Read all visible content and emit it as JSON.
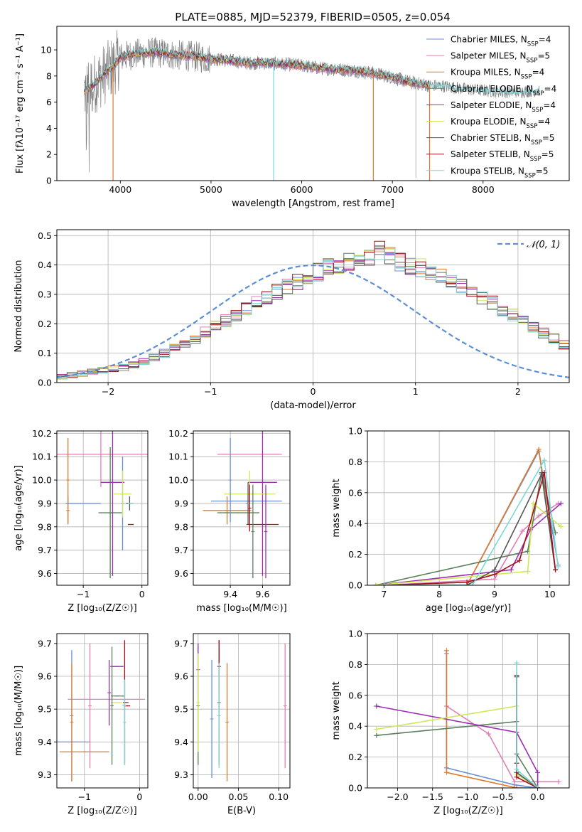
{
  "figure": {
    "title": "PLATE=0885, MJD=52379, FIBERID=0505, z=0.054"
  },
  "colors": {
    "Chabrier MILES": "#6a8fd6",
    "Salpeter MILES": "#e07fb4",
    "Kroupa MILES": "#e07a2a",
    "Chabrier ELODIE": "#5b7f5b",
    "Salpeter ELODIE": "#9b2fb0",
    "Kroupa ELODIE": "#cfe85a",
    "Chabrier STELIB": "#555555",
    "Salpeter STELIB": "#a3101c",
    "Kroupa STELIB": "#7dd8d8",
    "data": "#808080",
    "gaussian": "#5b8fd6"
  },
  "chart_data": [
    {
      "type": "line",
      "id": "spectrum",
      "xlabel": "wavelength [Angstrom, rest frame]",
      "ylabel": "Flux [fλ10⁻¹⁷ erg cm⁻² s⁻¹ A⁻¹]",
      "xlim": [
        3300,
        8950
      ],
      "ylim": [
        0,
        11.8
      ],
      "xticks": [
        4000,
        5000,
        6000,
        7000,
        8000
      ],
      "yticks": [
        0,
        2,
        4,
        6,
        8,
        10
      ],
      "grid": false,
      "legend_position": "top-right",
      "legend": [
        {
          "model": "Chabrier MILES",
          "nssp": "4"
        },
        {
          "model": "Salpeter MILES",
          "nssp": "5"
        },
        {
          "model": "Kroupa MILES",
          "nssp": "4"
        },
        {
          "model": "Chabrier ELODIE",
          "nssp": "4"
        },
        {
          "model": "Salpeter ELODIE",
          "nssp": "4"
        },
        {
          "model": "Kroupa ELODIE",
          "nssp": "4"
        },
        {
          "model": "Chabrier STELIB",
          "nssp": "5"
        },
        {
          "model": "Salpeter STELIB",
          "nssp": "5"
        },
        {
          "model": "Kroupa STELIB",
          "nssp": "5"
        }
      ],
      "continuum": {
        "x": [
          3600,
          3700,
          3800,
          3900,
          4000,
          4100,
          4200,
          4400,
          4600,
          4800,
          5000,
          5200,
          5400,
          5600,
          5800,
          6000,
          6200,
          6400,
          6600,
          6800,
          7000,
          7200,
          7400,
          7600,
          7800,
          8000,
          8200,
          8400,
          8600
        ],
        "y": [
          6.8,
          7.3,
          8.0,
          8.6,
          9.4,
          9.6,
          9.7,
          9.8,
          9.6,
          9.5,
          9.3,
          9.2,
          9.0,
          9.0,
          8.9,
          8.8,
          8.6,
          8.5,
          8.4,
          8.2,
          7.9,
          7.5,
          7.3,
          7.2,
          7.0,
          6.9,
          6.8,
          6.8,
          6.9
        ]
      },
      "model_xmax": 7420,
      "data_xmax": 8620,
      "drops": [
        {
          "x": 3920,
          "to": 0.0,
          "model": "Kroupa MILES"
        },
        {
          "x": 5690,
          "to": 0.0,
          "model": "Kroupa STELIB"
        },
        {
          "x": 6790,
          "to": 0.0,
          "model": "Kroupa MILES"
        },
        {
          "x": 7260,
          "to": 0.2,
          "model": "data"
        },
        {
          "x": 7410,
          "to": 0.0,
          "model": "Kroupa MILES"
        }
      ]
    },
    {
      "type": "bar",
      "id": "residuals",
      "xlabel": "(data-model)/error",
      "ylabel": "Normed distribution",
      "xlim": [
        -2.5,
        2.5
      ],
      "ylim": [
        0,
        0.52
      ],
      "xticks": [
        -2,
        -1,
        0,
        1,
        2
      ],
      "yticks": [
        0.0,
        0.1,
        0.2,
        0.3,
        0.4,
        0.5
      ],
      "grid": true,
      "legend_position": "top-right",
      "legend": [
        "𝒩(0, 1)"
      ],
      "bin_width": 0.1,
      "bin_start": -2.5,
      "base_values": [
        0.02,
        0.025,
        0.03,
        0.035,
        0.04,
        0.045,
        0.05,
        0.06,
        0.07,
        0.085,
        0.1,
        0.115,
        0.13,
        0.15,
        0.17,
        0.19,
        0.21,
        0.23,
        0.25,
        0.27,
        0.29,
        0.31,
        0.33,
        0.345,
        0.36,
        0.375,
        0.39,
        0.4,
        0.41,
        0.42,
        0.43,
        0.445,
        0.43,
        0.41,
        0.4,
        0.39,
        0.38,
        0.365,
        0.35,
        0.33,
        0.31,
        0.29,
        0.27,
        0.25,
        0.23,
        0.21,
        0.19,
        0.17,
        0.15,
        0.13,
        0.115,
        0.1,
        0.085,
        0.07,
        0.06,
        0.05,
        0.04,
        0.035,
        0.03,
        0.025,
        0.02
      ],
      "gaussian": {
        "mean": 0,
        "sigma": 1
      }
    },
    {
      "type": "scatter",
      "id": "age-vs-Z",
      "xlabel": "Z [log₁₀(Z/Z☉)]",
      "ylabel": "age  [log₁₀(age/yr)]",
      "xlim": [
        -1.45,
        0.1
      ],
      "ylim": [
        9.55,
        10.21
      ],
      "xticks": [
        -1,
        0
      ],
      "yticks": [
        9.6,
        9.7,
        9.8,
        9.9,
        10.0,
        10.1,
        10.2
      ],
      "grid": true,
      "points": [
        {
          "model": "Chabrier MILES",
          "x": -0.33,
          "xerr": 0.0,
          "y": 9.9,
          "yerr": 0.2
        },
        {
          "model": "Salpeter MILES",
          "x": -0.7,
          "xerr": 0.85,
          "y": 10.11,
          "yerr": 0.14
        },
        {
          "model": "Kroupa MILES",
          "x": -1.26,
          "xerr": 0.0,
          "y": 9.87,
          "yerr": 0.06
        },
        {
          "model": "Chabrier ELODIE",
          "x": -0.54,
          "xerr": 0.2,
          "y": 9.86,
          "yerr": 0.28
        },
        {
          "model": "Salpeter ELODIE",
          "x": -0.5,
          "xerr": 0.2,
          "y": 9.99,
          "yerr": 0.4
        },
        {
          "model": "Kroupa ELODIE",
          "x": -0.33,
          "xerr": 0.15,
          "y": 9.94,
          "yerr": 0.1
        },
        {
          "model": "Chabrier STELIB",
          "x": -0.21,
          "xerr": 0.06,
          "y": 9.9,
          "yerr": 0.03
        },
        {
          "model": "Salpeter STELIB",
          "x": -0.19,
          "xerr": 0.05,
          "y": 9.81,
          "yerr": 0.0
        },
        {
          "model": "Kroupa STELIB",
          "x": -0.19,
          "xerr": 0.05,
          "y": 9.9,
          "yerr": 0.0
        },
        {
          "model": "Kroupa MILES",
          "x": -1.26,
          "xerr": 0.0,
          "y": 10.0,
          "yerr": 0.18
        },
        {
          "model": "Chabrier MILES",
          "x": -1.0,
          "xerr": 0.3,
          "y": 9.9,
          "yerr": 0.0
        }
      ]
    },
    {
      "type": "scatter",
      "id": "age-vs-mass",
      "xlabel": "mass [log₁₀(M/M☉)]",
      "ylabel": "",
      "xlim": [
        9.17,
        9.77
      ],
      "ylim": [
        9.55,
        10.21
      ],
      "xticks": [
        9.4,
        9.6
      ],
      "yticks": [
        9.6,
        9.7,
        9.8,
        9.9,
        10.0,
        10.1,
        10.2
      ],
      "grid": true,
      "points": [
        {
          "model": "Chabrier MILES",
          "x": 9.5,
          "xerr": 0.22,
          "y": 9.91,
          "yerr": 0.0
        },
        {
          "model": "Salpeter MILES",
          "x": 9.52,
          "xerr": 0.2,
          "y": 10.11,
          "yerr": 0.0
        },
        {
          "model": "Kroupa MILES",
          "x": 9.38,
          "xerr": 0.15,
          "y": 9.87,
          "yerr": 0.06
        },
        {
          "model": "Chabrier ELODIE",
          "x": 9.45,
          "xerr": 0.13,
          "y": 9.86,
          "yerr": 0.0
        },
        {
          "model": "Salpeter ELODIE",
          "x": 9.6,
          "xerr": 0.09,
          "y": 9.99,
          "yerr": 0.4
        },
        {
          "model": "Kroupa ELODIE",
          "x": 9.52,
          "xerr": 0.16,
          "y": 9.94,
          "yerr": 0.1
        },
        {
          "model": "Chabrier STELIB",
          "x": 9.51,
          "xerr": 0.0,
          "y": 9.9,
          "yerr": 0.09
        },
        {
          "model": "Salpeter STELIB",
          "x": 9.6,
          "xerr": 0.1,
          "y": 9.81,
          "yerr": 0.0
        },
        {
          "model": "Kroupa STELIB",
          "x": 9.52,
          "xerr": 0.0,
          "y": 9.9,
          "yerr": 0.0
        },
        {
          "model": "Chabrier MILES",
          "x": 9.4,
          "xerr": 0.0,
          "y": 10.0,
          "yerr": 0.18
        },
        {
          "model": "Salpeter STELIB",
          "x": 9.52,
          "xerr": 0.0,
          "y": 9.88,
          "yerr": 0.1
        },
        {
          "model": "Chabrier ELODIE",
          "x": 9.54,
          "xerr": 0.0,
          "y": 9.78,
          "yerr": 0.2
        },
        {
          "model": "Salpeter ELODIE",
          "x": 9.62,
          "xerr": 0.0,
          "y": 9.78,
          "yerr": 0.2
        }
      ]
    },
    {
      "type": "line",
      "id": "massweight-vs-age",
      "xlabel": "age  [log₁₀(age/yr)]",
      "ylabel": "mass weight",
      "xlim": [
        6.7,
        10.35
      ],
      "ylim": [
        0,
        1.0
      ],
      "xticks": [
        7,
        8,
        9,
        10
      ],
      "yticks": [
        0.0,
        0.2,
        0.4,
        0.6,
        0.8,
        1.0
      ],
      "grid": true,
      "series": [
        {
          "name": "Chabrier MILES",
          "x": [
            7.0,
            8.5,
            9.8,
            10.15
          ],
          "y": [
            0.0,
            0.0,
            0.87,
            0.13
          ]
        },
        {
          "name": "Salpeter MILES",
          "x": [
            7.0,
            9.0,
            9.5,
            9.8,
            10.15
          ],
          "y": [
            0.0,
            0.04,
            0.35,
            0.45,
            0.53
          ]
        },
        {
          "name": "Kroupa MILES",
          "x": [
            7.0,
            8.5,
            9.8,
            10.1
          ],
          "y": [
            0.0,
            0.0,
            0.88,
            0.1
          ]
        },
        {
          "name": "Chabrier ELODIE",
          "x": [
            6.85,
            9.6,
            9.85,
            10.1
          ],
          "y": [
            0.0,
            0.22,
            0.73,
            0.34
          ]
        },
        {
          "name": "Salpeter ELODIE",
          "x": [
            6.85,
            9.3,
            9.65,
            10.2
          ],
          "y": [
            0.0,
            0.1,
            0.36,
            0.53
          ]
        },
        {
          "name": "Kroupa ELODIE",
          "x": [
            6.85,
            9.6,
            9.7,
            10.2
          ],
          "y": [
            0.0,
            0.09,
            0.53,
            0.38
          ]
        },
        {
          "name": "Chabrier STELIB",
          "x": [
            7.0,
            8.5,
            9.0,
            9.85,
            10.1
          ],
          "y": [
            0.0,
            0.0,
            0.1,
            0.72,
            0.1
          ]
        },
        {
          "name": "Salpeter STELIB",
          "x": [
            7.0,
            8.5,
            9.0,
            9.45,
            9.9,
            10.1
          ],
          "y": [
            0.0,
            0.02,
            0.07,
            0.16,
            0.73,
            0.1
          ]
        },
        {
          "name": "Kroupa STELIB",
          "x": [
            7.0,
            8.6,
            9.9,
            10.15
          ],
          "y": [
            0.0,
            0.0,
            0.81,
            0.12
          ]
        }
      ]
    },
    {
      "type": "scatter",
      "id": "mass-vs-Z",
      "xlabel": "Z [log₁₀(Z/Z☉)]",
      "ylabel": "mass [log₁₀(M/M☉)]",
      "xlim": [
        -1.5,
        0.15
      ],
      "ylim": [
        9.26,
        9.73
      ],
      "xticks": [
        -1,
        0
      ],
      "yticks": [
        9.3,
        9.4,
        9.5,
        9.6,
        9.7
      ],
      "grid": true,
      "points": [
        {
          "model": "Chabrier MILES",
          "x": -1.2,
          "xerr": 0.3,
          "y": 9.4,
          "yerr": 0.0
        },
        {
          "model": "Salpeter MILES",
          "x": -0.6,
          "xerr": 0.7,
          "y": 9.53,
          "yerr": 0.0
        },
        {
          "model": "Kroupa MILES",
          "x": -1.0,
          "xerr": 0.45,
          "y": 9.37,
          "yerr": 0.0
        },
        {
          "model": "Chabrier ELODIE",
          "x": -0.4,
          "xerr": 0.12,
          "y": 9.54,
          "yerr": 0.0
        },
        {
          "model": "Salpeter ELODIE",
          "x": -0.41,
          "xerr": 0.12,
          "y": 9.63,
          "yerr": 0.0
        },
        {
          "model": "Kroupa ELODIE",
          "x": -0.42,
          "xerr": 0.1,
          "y": 9.52,
          "yerr": 0.0
        },
        {
          "model": "Chabrier STELIB",
          "x": -0.25,
          "xerr": 0.05,
          "y": 9.52,
          "yerr": 0.0
        },
        {
          "model": "Salpeter STELIB",
          "x": -0.22,
          "xerr": 0.05,
          "y": 9.51,
          "yerr": 0.0
        },
        {
          "model": "Kroupa STELIB",
          "x": -0.28,
          "xerr": 0.0,
          "y": 9.51,
          "yerr": 0.0
        },
        {
          "model": "Chabrier MILES",
          "x": -1.23,
          "xerr": 0.0,
          "y": 9.48,
          "yerr": 0.2
        },
        {
          "model": "Kroupa MILES",
          "x": -1.23,
          "xerr": 0.0,
          "y": 9.46,
          "yerr": 0.18
        },
        {
          "model": "Salpeter MILES",
          "x": -0.9,
          "xerr": 0.0,
          "y": 9.51,
          "yerr": 0.19
        },
        {
          "model": "Chabrier ELODIE",
          "x": -0.5,
          "xerr": 0.0,
          "y": 9.51,
          "yerr": 0.18
        },
        {
          "model": "Salpeter ELODIE",
          "x": -0.55,
          "xerr": 0.0,
          "y": 9.55,
          "yerr": 0.1
        },
        {
          "model": "Salpeter STELIB",
          "x": -0.27,
          "xerr": 0.0,
          "y": 9.52,
          "yerr": 0.19
        },
        {
          "model": "Kroupa STELIB",
          "x": -0.27,
          "xerr": 0.0,
          "y": 9.46,
          "yerr": 0.13
        }
      ]
    },
    {
      "type": "scatter",
      "id": "mass-vs-EBV",
      "xlabel": "E(B-V)",
      "ylabel": "",
      "xlim": [
        -0.006,
        0.114
      ],
      "ylim": [
        9.26,
        9.73
      ],
      "xticks": [
        0.0,
        0.05,
        0.1
      ],
      "yticks": [
        9.3,
        9.4,
        9.5,
        9.6,
        9.7
      ],
      "grid": true,
      "points": [
        {
          "model": "Chabrier MILES",
          "x": 0.017,
          "xerr": 0.0,
          "y": 9.47,
          "yerr": 0.18
        },
        {
          "model": "Salpeter MILES",
          "x": 0.108,
          "xerr": 0.0,
          "y": 9.51,
          "yerr": 0.19
        },
        {
          "model": "Kroupa MILES",
          "x": 0.036,
          "xerr": 0.0,
          "y": 9.46,
          "yerr": 0.18
        },
        {
          "model": "Chabrier ELODIE",
          "x": 0.0,
          "xerr": 0.0,
          "y": 9.51,
          "yerr": 0.18
        },
        {
          "model": "Salpeter ELODIE",
          "x": 0.0,
          "xerr": 0.0,
          "y": 9.62,
          "yerr": 0.08
        },
        {
          "model": "Kroupa ELODIE",
          "x": 0.0,
          "xerr": 0.0,
          "y": 9.52,
          "yerr": 0.15
        },
        {
          "model": "Chabrier STELIB",
          "x": 0.026,
          "xerr": 0.0,
          "y": 9.52,
          "yerr": 0.19
        },
        {
          "model": "Salpeter STELIB",
          "x": 0.026,
          "xerr": 0.0,
          "y": 9.63,
          "yerr": 0.08
        },
        {
          "model": "Kroupa STELIB",
          "x": 0.026,
          "xerr": 0.0,
          "y": 9.48,
          "yerr": 0.16
        }
      ]
    },
    {
      "type": "line",
      "id": "massweight-vs-Z",
      "xlabel": "Z [log₁₀(Z/Z☉)]",
      "ylabel": "mass weight",
      "xlim": [
        -2.43,
        0.45
      ],
      "ylim": [
        0,
        1.0
      ],
      "xticks": [
        -2.0,
        -1.5,
        -1.0,
        -0.5,
        0.0
      ],
      "yticks": [
        0.0,
        0.2,
        0.4,
        0.6,
        0.8,
        1.0
      ],
      "grid": true,
      "series": [
        {
          "name": "Chabrier MILES",
          "x": [
            -1.3,
            -1.3,
            -0.33,
            0.0
          ],
          "y": [
            0.87,
            0.13,
            0.02,
            0.0
          ]
        },
        {
          "name": "Salpeter MILES",
          "x": [
            -1.3,
            -0.7,
            -0.33,
            0.3
          ],
          "y": [
            0.53,
            0.35,
            0.04,
            0.04
          ]
        },
        {
          "name": "Kroupa MILES",
          "x": [
            -1.3,
            -1.3,
            -0.3,
            0.0
          ],
          "y": [
            0.89,
            0.1,
            0.0,
            0.0
          ]
        },
        {
          "name": "Chabrier ELODIE",
          "x": [
            -2.3,
            -0.3,
            -0.3,
            0.0
          ],
          "y": [
            0.34,
            0.43,
            0.22,
            0.0
          ]
        },
        {
          "name": "Salpeter ELODIE",
          "x": [
            -2.3,
            -0.3,
            0.0,
            0.0
          ],
          "y": [
            0.53,
            0.36,
            0.1,
            0.0
          ]
        },
        {
          "name": "Kroupa ELODIE",
          "x": [
            -2.3,
            -0.3,
            -0.3,
            0.0
          ],
          "y": [
            0.38,
            0.53,
            0.09,
            0.0
          ]
        },
        {
          "name": "Chabrier STELIB",
          "x": [
            -0.3,
            -0.3,
            0.0
          ],
          "y": [
            0.72,
            0.1,
            0.0
          ]
        },
        {
          "name": "Salpeter STELIB",
          "x": [
            -0.3,
            -0.3,
            -0.3,
            0.0
          ],
          "y": [
            0.73,
            0.16,
            0.07,
            0.0
          ]
        },
        {
          "name": "Kroupa STELIB",
          "x": [
            -0.3,
            -0.3,
            0.0
          ],
          "y": [
            0.81,
            0.12,
            0.0
          ]
        }
      ]
    }
  ]
}
